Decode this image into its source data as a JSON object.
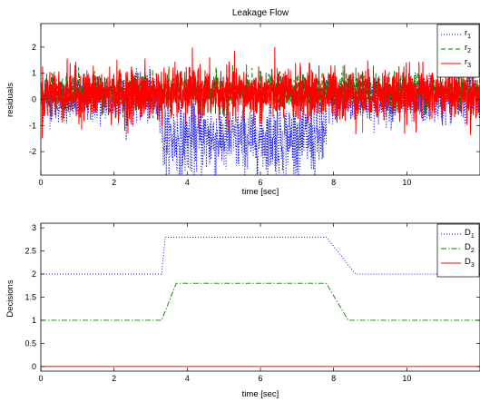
{
  "chart_data": [
    {
      "type": "line",
      "title": "Leakage Flow",
      "xlabel": "time [sec]",
      "ylabel": "residuals",
      "xlim": [
        0,
        12
      ],
      "ylim": [
        -2.9,
        2.9
      ],
      "xticks": [
        0,
        2,
        4,
        6,
        8,
        10
      ],
      "yticks": [
        -2,
        -1,
        0,
        1,
        2
      ],
      "grid": false,
      "legend": "top-right",
      "series": [
        {
          "name": "r",
          "subscript": "1",
          "color": "#0000ff",
          "dash": "dotted",
          "description_segments": [
            {
              "x": [
                0,
                3.3
              ],
              "mean": 0.0,
              "noise": 0.45
            },
            {
              "x": [
                3.3,
                7.8
              ],
              "mean": -1.5,
              "noise": 0.7
            },
            {
              "x": [
                7.8,
                12
              ],
              "mean": 0.0,
              "noise": 0.45
            }
          ]
        },
        {
          "name": "r",
          "subscript": "2",
          "color": "#007f00",
          "dash": "dashed",
          "description_segments": [
            {
              "x": [
                0,
                12
              ],
              "mean": 0.3,
              "noise": 0.35
            }
          ]
        },
        {
          "name": "r",
          "subscript": "3",
          "color": "#ff0000",
          "dash": "solid",
          "description_segments": [
            {
              "x": [
                0,
                12
              ],
              "mean": 0.2,
              "noise": 0.5
            }
          ]
        }
      ]
    },
    {
      "type": "line",
      "title": "",
      "xlabel": "time [sec]",
      "ylabel": "Decisions",
      "xlim": [
        0,
        12
      ],
      "ylim": [
        -0.1,
        3.1
      ],
      "xticks": [
        0,
        2,
        4,
        6,
        8,
        10
      ],
      "yticks": [
        0,
        0.5,
        1,
        1.5,
        2,
        2.5,
        3
      ],
      "grid": false,
      "legend": "top-right",
      "series": [
        {
          "name": "D",
          "subscript": "1",
          "color": "#0000ff",
          "dash": "dotted",
          "x": [
            0,
            3.3,
            3.4,
            7.8,
            8.6,
            12
          ],
          "y": [
            2,
            2,
            2.8,
            2.8,
            2,
            2
          ]
        },
        {
          "name": "D",
          "subscript": "2",
          "color": "#007f00",
          "dash": "dashdot",
          "x": [
            0,
            3.3,
            3.7,
            7.8,
            8.4,
            12
          ],
          "y": [
            1,
            1,
            1.8,
            1.8,
            1,
            1
          ]
        },
        {
          "name": "D",
          "subscript": "3",
          "color": "#ff0000",
          "dash": "solid",
          "x": [
            0,
            12
          ],
          "y": [
            0,
            0
          ]
        }
      ]
    }
  ]
}
